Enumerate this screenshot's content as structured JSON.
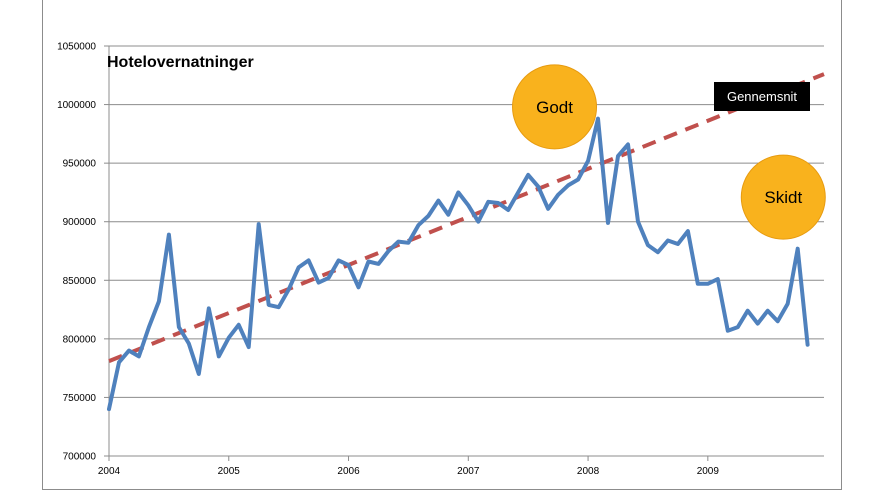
{
  "chart_data": {
    "type": "line",
    "title": "Hotelovernatninger",
    "ylim": [
      700000,
      1050000
    ],
    "xlim": [
      2004.0,
      2009.97
    ],
    "y_ticks": [
      "1050000",
      "1000000",
      "950000",
      "900000",
      "850000",
      "800000",
      "750000",
      "700000"
    ],
    "x_ticks": [
      "2004",
      "2005",
      "2006",
      "2007",
      "2008",
      "2009"
    ],
    "grid": "horizontal",
    "series": [
      {
        "name": "",
        "color": "#4f81bd",
        "values": [
          740000,
          780000,
          790000,
          785000,
          810000,
          832000,
          889000,
          810000,
          796000,
          770000,
          826000,
          785000,
          801000,
          812000,
          793000,
          898000,
          829000,
          827000,
          842000,
          861000,
          867000,
          848000,
          852000,
          867000,
          863000,
          844000,
          866000,
          864000,
          875000,
          883000,
          882000,
          897000,
          905000,
          918000,
          906000,
          925000,
          914000,
          900000,
          917000,
          916000,
          910000,
          925000,
          940000,
          930000,
          911000,
          923000,
          931000,
          936000,
          952000,
          988000,
          899000,
          956000,
          966000,
          900000,
          880000,
          874000,
          884000,
          881000,
          892000,
          847000,
          847000,
          851000,
          807000,
          810000,
          824000,
          813000,
          824000,
          815000,
          830000,
          877000,
          795000
        ]
      }
    ],
    "trend": {
      "name": "Gennemsnit",
      "color": "#c0504d",
      "start": 781000,
      "end": 1026000
    },
    "annotations": [
      {
        "label": "Godt",
        "color": "#f9b21d",
        "x": 2007.72,
        "y": 998000
      },
      {
        "label": "Skidt",
        "color": "#f9b21d",
        "x": 2009.63,
        "y": 921000
      }
    ]
  }
}
